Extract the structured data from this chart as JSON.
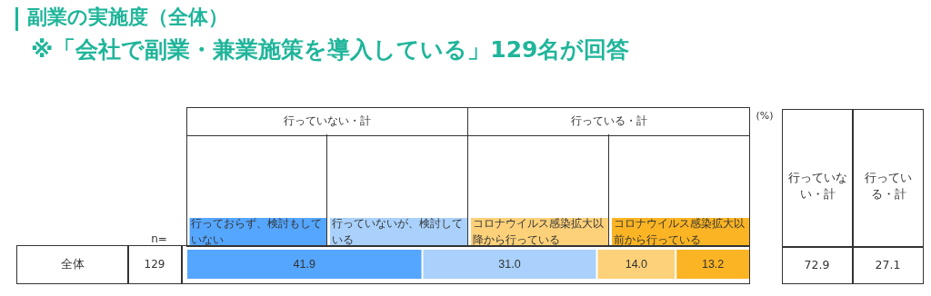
{
  "chart_data": {
    "type": "bar",
    "orientation": "horizontal",
    "stacked": true,
    "title": "副業の実施度（全体）",
    "subtitle": "※「会社で副業・兼業施策を導入している」129名が回答",
    "categories": [
      "全体"
    ],
    "series": [
      {
        "name": "行っておらず、検討もしていない",
        "color": "#55a6ff",
        "values": [
          41.9
        ],
        "value_labels": [
          "41.9"
        ]
      },
      {
        "name": "行っていないが、検討している",
        "color": "#a9d1fb",
        "values": [
          31.0
        ],
        "value_labels": [
          "31.0"
        ]
      },
      {
        "name": "コロナウイルス感染拡大以降から行っている",
        "color": "#fdd17a",
        "values": [
          14.0
        ],
        "value_labels": [
          "14.0"
        ]
      },
      {
        "name": "コロナウイルス感染拡大以前から行っている",
        "color": "#fbb424",
        "values": [
          13.2
        ],
        "value_labels": [
          "13.2"
        ]
      }
    ],
    "legend": "top",
    "annotations": [
      "行っていない・計",
      "行っている・計",
      "(%)",
      "n=",
      "129",
      "行っていない・計",
      "行っている・計",
      "72.9",
      "27.1"
    ]
  }
}
